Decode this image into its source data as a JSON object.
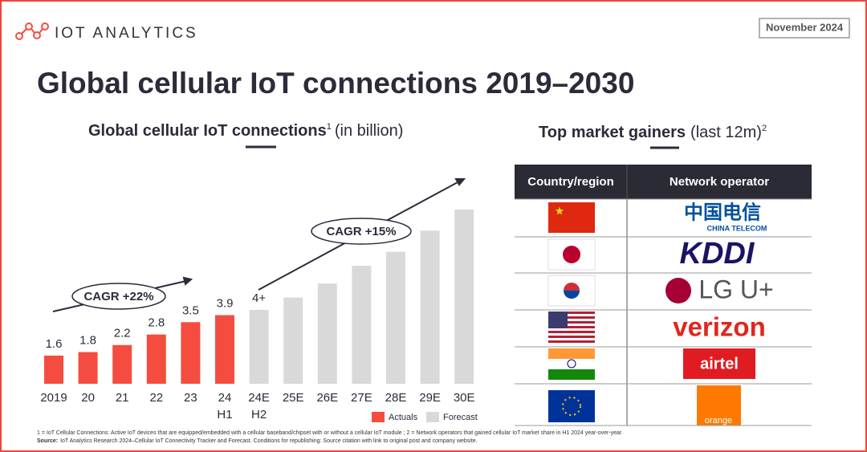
{
  "brand": "IOT ANALYTICS",
  "date": "November 2024",
  "title": "Global cellular IoT connections 2019–2030",
  "chart_data": {
    "type": "bar",
    "title": "Global cellular IoT connections",
    "title_note": "1",
    "subtitle": "(in billion)",
    "categories": [
      "2019",
      "20",
      "21",
      "22",
      "23",
      "24 H1",
      "24E H2",
      "25E",
      "26E",
      "27E",
      "28E",
      "29E",
      "30E"
    ],
    "series": [
      {
        "name": "Actuals",
        "color": "#f44d3f",
        "values": [
          1.6,
          1.8,
          2.2,
          2.8,
          3.5,
          3.9,
          null,
          null,
          null,
          null,
          null,
          null,
          null
        ]
      },
      {
        "name": "Forecast",
        "color": "#d9d9d9",
        "values": [
          null,
          null,
          null,
          null,
          null,
          null,
          4.2,
          4.9,
          5.7,
          6.7,
          7.5,
          8.7,
          9.9
        ],
        "value_labels": [
          null,
          null,
          null,
          null,
          null,
          null,
          "4+",
          null,
          null,
          null,
          null,
          null,
          null
        ]
      }
    ],
    "annotations": [
      "CAGR +22%",
      "CAGR +15%"
    ]
  },
  "table": {
    "title": "Top market gainers",
    "title_note": "(last 12m)",
    "title_sup": "2",
    "header": [
      "Country/region",
      "Network operator"
    ],
    "rows": [
      [
        "China",
        "中国电信",
        "CHINA TELECOM"
      ],
      [
        "Japan",
        "KDDI"
      ],
      [
        "South Korea",
        "LG U+"
      ],
      [
        "United States",
        "verizon"
      ],
      [
        "India",
        "airtel"
      ],
      [
        "European Union",
        "orange"
      ]
    ]
  },
  "footnotes": [
    "1 = IoT Cellular Connections: Active IoT devices that are equipped/embedded with a cellular baseband/chipset with or without a cellular IoT module ; 2 = Network operators that gained cellular IoT market share in H1 2024 year-over-year.",
    "Source:",
    "IoT Analytics Research 2024–Cellular IoT Connectivity Tracker and Forecast. Conditions for republishing: Source citation with link to original post and company website."
  ]
}
